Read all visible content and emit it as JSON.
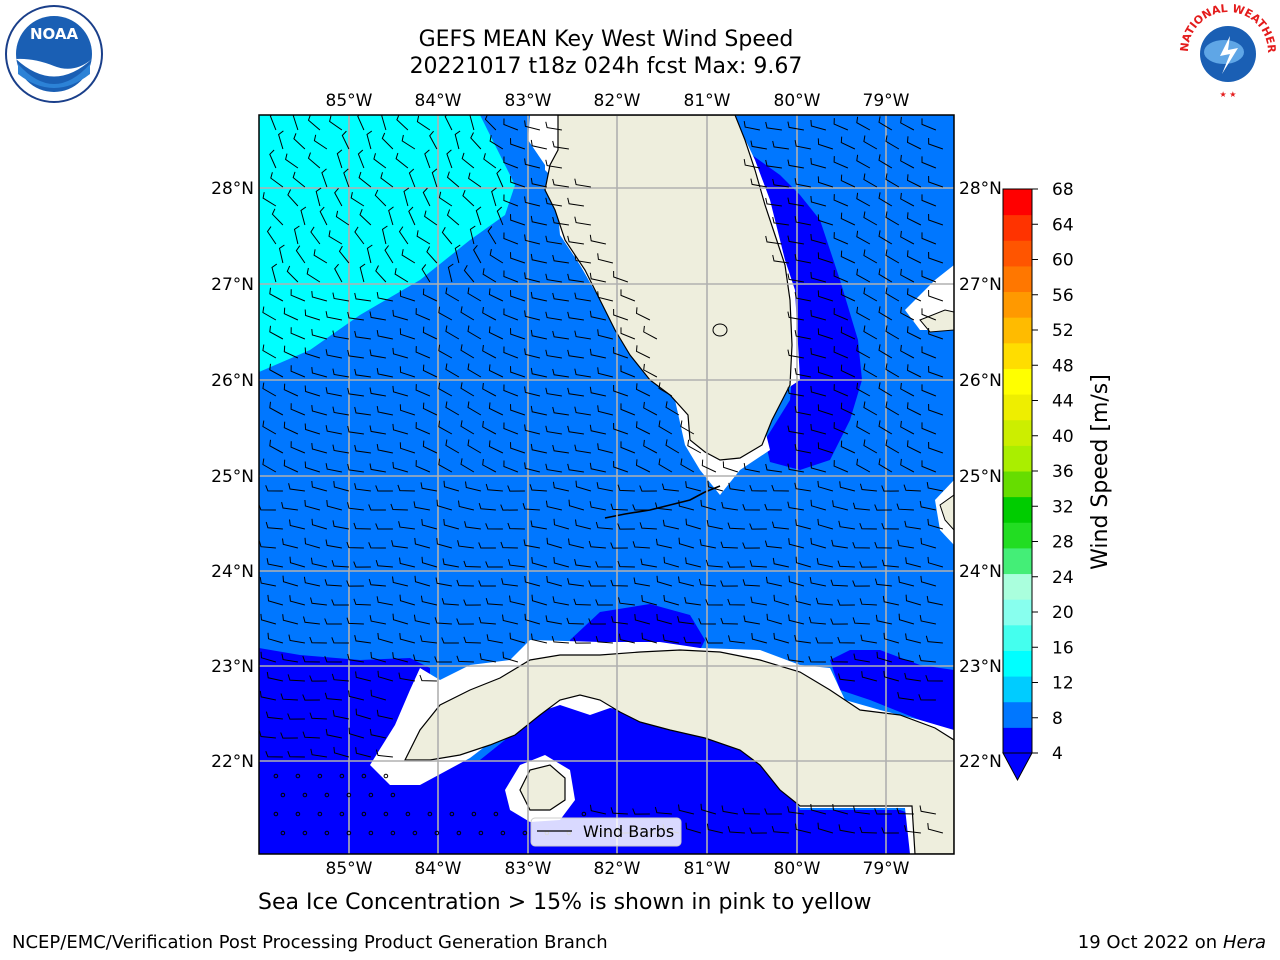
{
  "title_line1": "GEFS MEAN Key West Wind Speed",
  "title_line2": "20221017 t18z 024h fcst   Max: 9.67",
  "caption": "Sea Ice Concentration > 15% is shown in pink to yellow",
  "footer_left": "NCEP/EMC/Verification Post Processing Product Generation Branch",
  "footer_date": "19 Oct 2022 on ",
  "footer_host": "Hera",
  "legend_label": "Wind Barbs",
  "lon_labels": [
    "85°W",
    "84°W",
    "83°W",
    "82°W",
    "81°W",
    "80°W",
    "79°W"
  ],
  "lat_labels": [
    "28°N",
    "27°N",
    "26°N",
    "25°N",
    "24°N",
    "23°N",
    "22°N"
  ],
  "colorbar": {
    "title": "Wind Speed [m/s]",
    "ticks": [
      "68",
      "64",
      "60",
      "56",
      "52",
      "48",
      "44",
      "40",
      "36",
      "32",
      "28",
      "24",
      "20",
      "16",
      "12",
      "8",
      "4"
    ],
    "colors": [
      "#0000ff",
      "#0077ff",
      "#00ccff",
      "#00ffff",
      "#44ffee",
      "#88ffee",
      "#aaffdd",
      "#44ee77",
      "#22dd22",
      "#00cc00",
      "#66dd00",
      "#aaee00",
      "#ccee00",
      "#eeee00",
      "#ffff00",
      "#ffdd00",
      "#ffbb00",
      "#ff9900",
      "#ff7700",
      "#ff5500",
      "#ff3300",
      "#ff0000"
    ]
  },
  "logos": {
    "noaa": "NOAA",
    "nws": "NATIONAL WEATHER SERVICE"
  },
  "colors": {
    "land": "#eeeedd",
    "dark_blue": "#0000ff",
    "mid_blue": "#0077ff",
    "cyan": "#00ffff",
    "grid": "#b0b0b0"
  }
}
